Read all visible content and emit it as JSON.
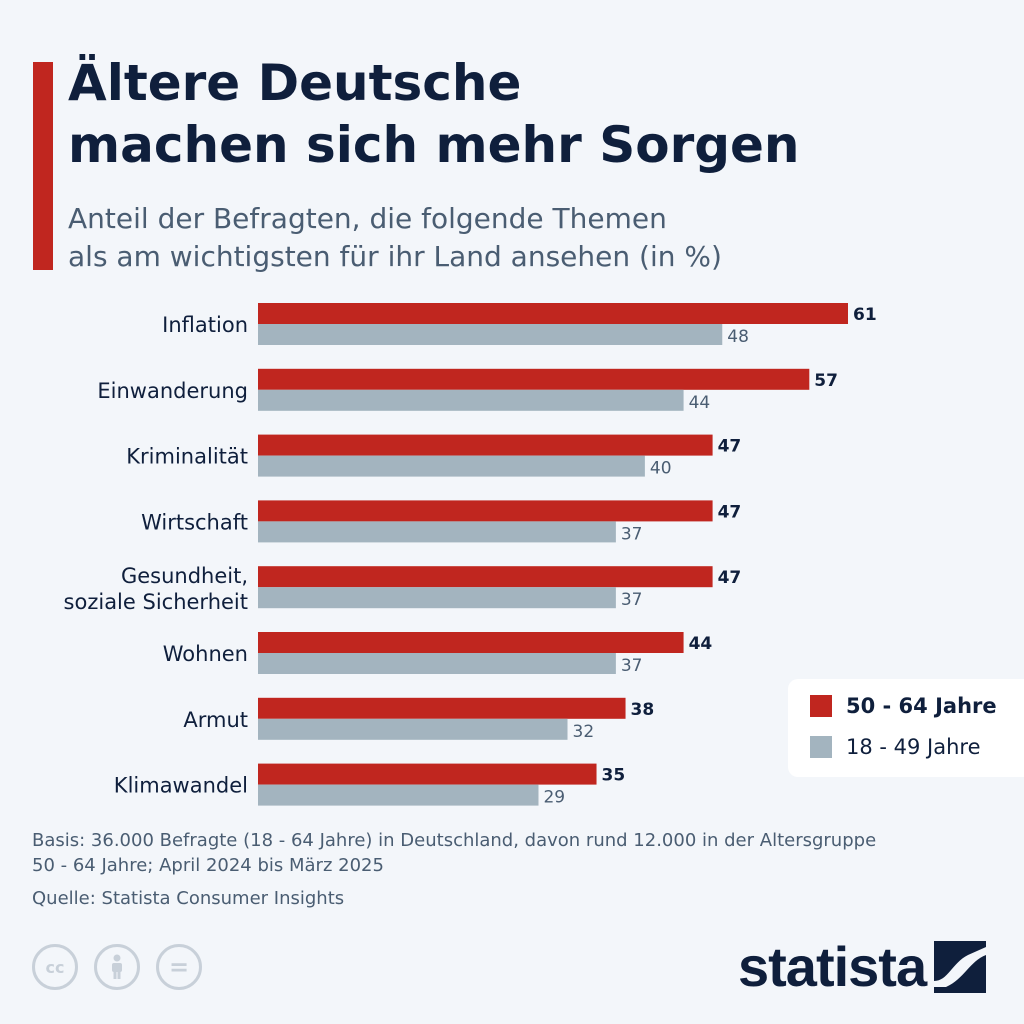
{
  "title_lines": [
    "Ältere Deutsche",
    "machen sich mehr Sorgen"
  ],
  "subtitle_lines": [
    "Anteil der Befragten, die folgende Themen",
    "als am wichtigsten für ihr Land ansehen (in %)"
  ],
  "colors": {
    "accent": "#c0261f",
    "series_a": "#c0261f",
    "series_b": "#a3b4bf",
    "text_dark": "#0f1f3c",
    "text_muted": "#4a5d72"
  },
  "chart_data": {
    "type": "bar",
    "orientation": "horizontal",
    "categories": [
      [
        "Inflation"
      ],
      [
        "Einwanderung"
      ],
      [
        "Kriminalität"
      ],
      [
        "Wirtschaft"
      ],
      [
        "Gesundheit,",
        "soziale Sicherheit"
      ],
      [
        "Wohnen"
      ],
      [
        "Armut"
      ],
      [
        "Klimawandel"
      ]
    ],
    "series": [
      {
        "name": "50 - 64 Jahre",
        "values": [
          61,
          57,
          47,
          47,
          47,
          44,
          38,
          35
        ]
      },
      {
        "name": "18 - 49 Jahre",
        "values": [
          48,
          44,
          40,
          37,
          37,
          37,
          32,
          29
        ]
      }
    ],
    "xlim": [
      0,
      61
    ],
    "grid": false,
    "legend_position": "bottom-right"
  },
  "legend": [
    {
      "label": "50 - 64 Jahre"
    },
    {
      "label": "18 - 49 Jahre"
    }
  ],
  "note_lines": [
    "Basis: 36.000 Befragte (18 - 64 Jahre) in Deutschland, davon rund 12.000 in der Altersgruppe",
    "50 - 64 Jahre; April 2024 bis März 2025"
  ],
  "source": "Quelle: Statista Consumer Insights",
  "license_icons": [
    {
      "icon": "cc-icon",
      "glyph": "cc"
    },
    {
      "icon": "attribution-icon",
      "glyph": ""
    },
    {
      "icon": "no-derivatives-icon",
      "glyph": "="
    }
  ],
  "logo_text": "statista"
}
